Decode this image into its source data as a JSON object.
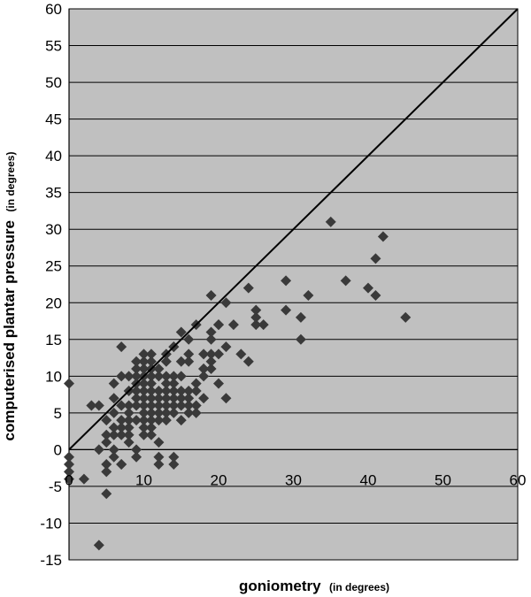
{
  "chart_data": {
    "type": "scatter",
    "xlabel": "goniometry",
    "xlabel_unit": "(in degrees)",
    "ylabel": "computerised plantar pressure",
    "ylabel_unit": "(in degrees)",
    "xlim": [
      0,
      60
    ],
    "ylim": [
      -15,
      60
    ],
    "xticks": [
      "0",
      "10",
      "20",
      "30",
      "40",
      "50",
      "60"
    ],
    "yticks": [
      "60",
      "55",
      "50",
      "45",
      "40",
      "35",
      "30",
      "25",
      "20",
      "15",
      "10",
      "5",
      "0",
      "-5",
      "-10",
      "-15"
    ],
    "grid": "horizontal",
    "background": "#c0c0c0",
    "marker_color": "#3a3a3a",
    "line_color": "#000000",
    "reference_line": {
      "x": [
        0,
        60
      ],
      "y": [
        0,
        60
      ]
    },
    "x": [
      0,
      0,
      0,
      0,
      0,
      2,
      3,
      4,
      4,
      4,
      5,
      5,
      5,
      5,
      5,
      5,
      6,
      6,
      6,
      6,
      6,
      6,
      6,
      7,
      7,
      7,
      7,
      7,
      7,
      7,
      7,
      8,
      8,
      8,
      8,
      8,
      8,
      8,
      8,
      9,
      9,
      9,
      9,
      9,
      9,
      9,
      9,
      9,
      9,
      10,
      10,
      10,
      10,
      10,
      10,
      10,
      10,
      10,
      10,
      10,
      10,
      11,
      11,
      11,
      11,
      11,
      11,
      11,
      11,
      11,
      11,
      11,
      11,
      12,
      12,
      12,
      12,
      12,
      12,
      12,
      12,
      12,
      12,
      13,
      13,
      13,
      13,
      13,
      13,
      13,
      13,
      13,
      14,
      14,
      14,
      14,
      14,
      14,
      14,
      14,
      14,
      14,
      15,
      15,
      15,
      15,
      15,
      15,
      15,
      16,
      16,
      16,
      16,
      16,
      16,
      16,
      17,
      17,
      17,
      17,
      17,
      18,
      18,
      18,
      18,
      18,
      19,
      19,
      19,
      19,
      19,
      19,
      20,
      20,
      20,
      20,
      21,
      21,
      21,
      22,
      23,
      24,
      24,
      25,
      25,
      25,
      26,
      29,
      29,
      31,
      31,
      32,
      35,
      37,
      40,
      41,
      41,
      42,
      45
    ],
    "y": [
      9,
      -1,
      -2,
      -3,
      -4,
      -4,
      6,
      -13,
      6,
      0,
      -2,
      4,
      2,
      1,
      -3,
      -6,
      3,
      0,
      -1,
      7,
      9,
      2,
      5,
      10,
      14,
      -2,
      2,
      3,
      4,
      6,
      -2,
      8,
      5,
      4,
      1,
      2,
      3,
      6,
      10,
      11,
      -1,
      0,
      4,
      6,
      7,
      8,
      9,
      10,
      12,
      13,
      2,
      3,
      4,
      5,
      6,
      7,
      8,
      9,
      10,
      11,
      12,
      13,
      2,
      3,
      4,
      5,
      6,
      7,
      8,
      9,
      10,
      11,
      12,
      1,
      -1,
      -2,
      4,
      5,
      6,
      7,
      8,
      10,
      11,
      12,
      4,
      5,
      6,
      7,
      8,
      9,
      10,
      13,
      14,
      -1,
      -2,
      5,
      6,
      7,
      8,
      9,
      10,
      14,
      16,
      4,
      6,
      7,
      8,
      10,
      12,
      15,
      5,
      6,
      7,
      8,
      12,
      13,
      17,
      5,
      6,
      8,
      9,
      11,
      7,
      10,
      11,
      13,
      21,
      11,
      12,
      13,
      15,
      16,
      17,
      9,
      13,
      17,
      20,
      7,
      14,
      17,
      13,
      12,
      22,
      17,
      18,
      19,
      17,
      19,
      23,
      15,
      18,
      21,
      31,
      23,
      22,
      21,
      26,
      29,
      18
    ]
  }
}
